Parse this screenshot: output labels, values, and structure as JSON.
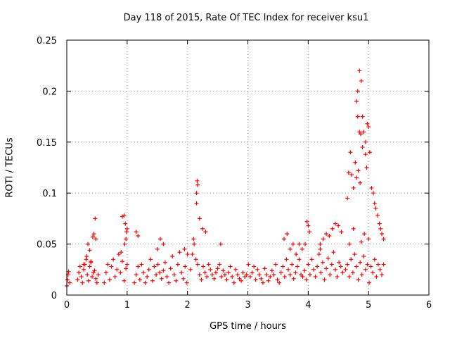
{
  "chart_data": {
    "type": "scatter",
    "title": "Day 118 of 2015, Rate Of TEC Index for receiver ksu1",
    "xlabel": "GPS time / hours",
    "ylabel": "ROTI / TECUs",
    "xlim": [
      0,
      6
    ],
    "ylim": [
      0,
      0.25
    ],
    "xticks": [
      "0",
      "1",
      "2",
      "3",
      "4",
      "5",
      "6"
    ],
    "yticks": [
      "0",
      "0.05",
      "0.1",
      "0.15",
      "0.2",
      "0.25"
    ],
    "grid": true,
    "marker": "+",
    "colors": {
      "series": "#ff0000",
      "grid": "#a0a0a0",
      "axis": "#000000"
    },
    "series": [
      {
        "name": "ROTI",
        "x": [
          0.0,
          0.01,
          0.02,
          0.03,
          0.05,
          0.18,
          0.2,
          0.22,
          0.24,
          0.26,
          0.28,
          0.3,
          0.32,
          0.34,
          0.36,
          0.38,
          0.4,
          0.42,
          0.44,
          0.46,
          0.48,
          0.5,
          0.52,
          0.28,
          0.33,
          0.38,
          0.43,
          0.47,
          0.35,
          0.4,
          0.45,
          0.48,
          0.62,
          0.65,
          0.68,
          0.71,
          0.74,
          0.77,
          0.8,
          0.83,
          0.86,
          0.89,
          0.92,
          0.95,
          0.98,
          1.0,
          0.92,
          0.95,
          0.97,
          0.99,
          0.96,
          0.98,
          1.0,
          0.9,
          1.12,
          1.15,
          1.18,
          1.21,
          1.24,
          1.27,
          1.3,
          1.33,
          1.36,
          1.39,
          1.42,
          1.45,
          1.48,
          1.51,
          1.54,
          1.57,
          1.6,
          1.63,
          1.66,
          1.69,
          1.72,
          1.75,
          1.78,
          1.81,
          1.84,
          1.87,
          1.9,
          1.93,
          1.96,
          1.99,
          1.15,
          1.18,
          1.55,
          1.6,
          1.5,
          1.95,
          2.0,
          2.05,
          2.08,
          2.11,
          2.14,
          2.17,
          2.2,
          2.23,
          2.26,
          2.29,
          2.32,
          2.35,
          2.38,
          2.41,
          2.44,
          2.47,
          2.5,
          2.53,
          2.56,
          2.59,
          2.62,
          2.65,
          2.68,
          2.71,
          2.74,
          2.77,
          2.8,
          2.83,
          2.86,
          2.89,
          2.92,
          2.95,
          2.98,
          2.1,
          2.15,
          2.16,
          2.17,
          2.2,
          2.25,
          2.3,
          2.15,
          2.55,
          3.01,
          3.04,
          3.07,
          3.1,
          3.13,
          3.16,
          3.19,
          3.22,
          3.25,
          3.28,
          3.31,
          3.34,
          3.37,
          3.4,
          3.43,
          3.46,
          3.49,
          3.52,
          3.55,
          3.58,
          3.61,
          3.64,
          3.67,
          3.7,
          3.73,
          3.76,
          3.79,
          3.82,
          3.85,
          3.88,
          3.91,
          3.94,
          3.97,
          3.6,
          3.65,
          3.7,
          3.75,
          3.8,
          3.85,
          3.9,
          3.95,
          4.0,
          4.03,
          4.06,
          4.09,
          4.12,
          4.15,
          4.18,
          4.21,
          4.24,
          4.27,
          4.3,
          4.33,
          4.36,
          4.39,
          4.42,
          4.45,
          4.48,
          4.51,
          4.54,
          4.57,
          3.98,
          4.0,
          4.02,
          4.2,
          4.25,
          4.3,
          4.35,
          4.4,
          4.45,
          4.5,
          4.55,
          4.2,
          4.62,
          4.65,
          4.68,
          4.71,
          4.74,
          4.77,
          4.8,
          4.83,
          4.86,
          4.89,
          4.92,
          4.95,
          4.98,
          5.01,
          5.04,
          5.07,
          5.1,
          5.13,
          5.16,
          5.19,
          5.22,
          5.25,
          4.65,
          4.67,
          4.7,
          4.72,
          4.75,
          4.78,
          4.8,
          4.82,
          4.85,
          4.88,
          4.9,
          4.92,
          4.95,
          4.98,
          5.0,
          5.02,
          4.82,
          4.85,
          4.87,
          4.9,
          4.95,
          4.97,
          4.8,
          4.83,
          4.86,
          5.05,
          5.08,
          5.1,
          5.12,
          5.15,
          5.18,
          5.2,
          5.22,
          5.25,
          4.68,
          4.75,
          4.88,
          4.93,
          5.0
        ],
        "y": [
          0.009,
          0.015,
          0.02,
          0.023,
          0.012,
          0.015,
          0.022,
          0.028,
          0.018,
          0.012,
          0.025,
          0.03,
          0.035,
          0.02,
          0.014,
          0.028,
          0.032,
          0.018,
          0.022,
          0.024,
          0.016,
          0.012,
          0.02,
          0.03,
          0.038,
          0.044,
          0.057,
          0.075,
          0.05,
          0.033,
          0.06,
          0.055,
          0.012,
          0.022,
          0.03,
          0.015,
          0.028,
          0.035,
          0.018,
          0.025,
          0.04,
          0.022,
          0.033,
          0.014,
          0.026,
          0.03,
          0.077,
          0.078,
          0.07,
          0.062,
          0.05,
          0.055,
          0.065,
          0.042,
          0.012,
          0.02,
          0.028,
          0.015,
          0.03,
          0.022,
          0.012,
          0.018,
          0.025,
          0.035,
          0.014,
          0.028,
          0.02,
          0.03,
          0.022,
          0.016,
          0.024,
          0.032,
          0.018,
          0.012,
          0.026,
          0.038,
          0.02,
          0.014,
          0.03,
          0.042,
          0.022,
          0.016,
          0.028,
          0.012,
          0.062,
          0.058,
          0.055,
          0.05,
          0.045,
          0.045,
          0.04,
          0.025,
          0.04,
          0.05,
          0.035,
          0.03,
          0.02,
          0.015,
          0.028,
          0.022,
          0.018,
          0.03,
          0.025,
          0.02,
          0.016,
          0.022,
          0.026,
          0.03,
          0.018,
          0.024,
          0.02,
          0.015,
          0.022,
          0.028,
          0.018,
          0.012,
          0.025,
          0.02,
          0.016,
          0.014,
          0.022,
          0.018,
          0.02,
          0.055,
          0.1,
          0.112,
          0.108,
          0.075,
          0.065,
          0.062,
          0.09,
          0.05,
          0.03,
          0.018,
          0.022,
          0.028,
          0.015,
          0.025,
          0.02,
          0.016,
          0.012,
          0.026,
          0.02,
          0.014,
          0.018,
          0.024,
          0.02,
          0.03,
          0.015,
          0.012,
          0.022,
          0.028,
          0.018,
          0.035,
          0.025,
          0.02,
          0.03,
          0.016,
          0.022,
          0.028,
          0.035,
          0.02,
          0.018,
          0.024,
          0.015,
          0.055,
          0.06,
          0.045,
          0.05,
          0.04,
          0.05,
          0.045,
          0.05,
          0.03,
          0.02,
          0.035,
          0.025,
          0.018,
          0.028,
          0.04,
          0.022,
          0.032,
          0.015,
          0.026,
          0.036,
          0.02,
          0.03,
          0.042,
          0.025,
          0.018,
          0.032,
          0.028,
          0.022,
          0.072,
          0.068,
          0.062,
          0.05,
          0.055,
          0.06,
          0.058,
          0.065,
          0.07,
          0.068,
          0.062,
          0.045,
          0.025,
          0.03,
          0.018,
          0.035,
          0.022,
          0.04,
          0.028,
          0.015,
          0.032,
          0.02,
          0.038,
          0.025,
          0.03,
          0.012,
          0.028,
          0.022,
          0.035,
          0.018,
          0.03,
          0.025,
          0.02,
          0.03,
          0.095,
          0.12,
          0.14,
          0.118,
          0.105,
          0.13,
          0.19,
          0.2,
          0.22,
          0.21,
          0.175,
          0.16,
          0.15,
          0.168,
          0.165,
          0.14,
          0.175,
          0.16,
          0.158,
          0.145,
          0.138,
          0.125,
          0.115,
          0.122,
          0.11,
          0.105,
          0.1,
          0.09,
          0.085,
          0.078,
          0.07,
          0.065,
          0.06,
          0.055,
          0.05,
          0.065,
          0.052,
          0.06,
          0.055
        ]
      }
    ]
  }
}
